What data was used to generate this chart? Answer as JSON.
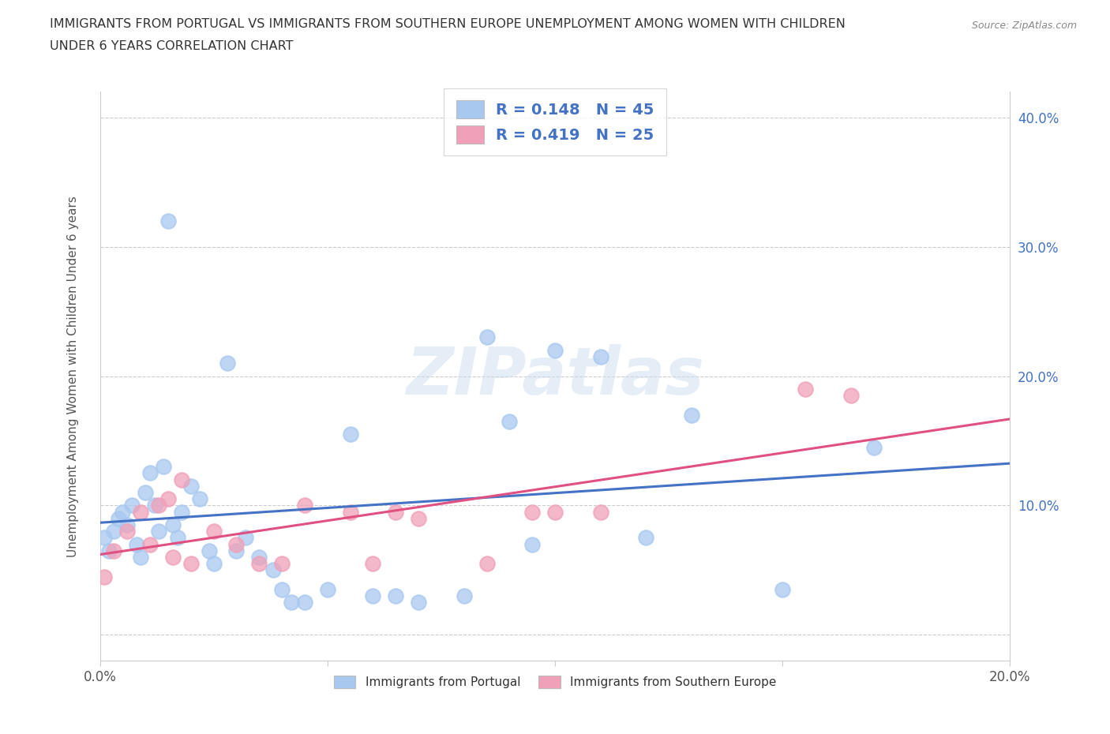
{
  "title_line1": "IMMIGRANTS FROM PORTUGAL VS IMMIGRANTS FROM SOUTHERN EUROPE UNEMPLOYMENT AMONG WOMEN WITH CHILDREN",
  "title_line2": "UNDER 6 YEARS CORRELATION CHART",
  "source": "Source: ZipAtlas.com",
  "ylabel": "Unemployment Among Women with Children Under 6 years",
  "xlim": [
    0.0,
    0.2
  ],
  "ylim": [
    -0.02,
    0.42
  ],
  "xticks": [
    0.0,
    0.05,
    0.1,
    0.15,
    0.2
  ],
  "xtick_labels": [
    "0.0%",
    "",
    "",
    "",
    "20.0%"
  ],
  "yticks": [
    0.0,
    0.1,
    0.2,
    0.3,
    0.4
  ],
  "ytick_labels_right": [
    "",
    "10.0%",
    "20.0%",
    "30.0%",
    "40.0%"
  ],
  "legend_labels": [
    "Immigrants from Portugal",
    "Immigrants from Southern Europe"
  ],
  "R_portugal": 0.148,
  "N_portugal": 45,
  "R_southern": 0.419,
  "N_southern": 25,
  "color_portugal": "#a8c8f0",
  "color_southern": "#f0a0b8",
  "line_color_portugal": "#4472c4",
  "line_color_southern": "#e05080",
  "background_color": "#ffffff",
  "watermark": "ZIPatlas",
  "scatter_portugal_x": [
    0.001,
    0.002,
    0.003,
    0.004,
    0.005,
    0.006,
    0.007,
    0.008,
    0.009,
    0.01,
    0.011,
    0.012,
    0.013,
    0.014,
    0.015,
    0.016,
    0.017,
    0.018,
    0.02,
    0.022,
    0.024,
    0.025,
    0.028,
    0.03,
    0.032,
    0.035,
    0.038,
    0.04,
    0.042,
    0.045,
    0.05,
    0.055,
    0.06,
    0.065,
    0.07,
    0.08,
    0.085,
    0.09,
    0.095,
    0.1,
    0.11,
    0.12,
    0.13,
    0.15,
    0.17
  ],
  "scatter_portugal_y": [
    0.075,
    0.065,
    0.08,
    0.09,
    0.095,
    0.085,
    0.1,
    0.07,
    0.06,
    0.11,
    0.125,
    0.1,
    0.08,
    0.13,
    0.32,
    0.085,
    0.075,
    0.095,
    0.115,
    0.105,
    0.065,
    0.055,
    0.21,
    0.065,
    0.075,
    0.06,
    0.05,
    0.035,
    0.025,
    0.025,
    0.035,
    0.155,
    0.03,
    0.03,
    0.025,
    0.03,
    0.23,
    0.165,
    0.07,
    0.22,
    0.215,
    0.075,
    0.17,
    0.035,
    0.145
  ],
  "scatter_southern_x": [
    0.001,
    0.003,
    0.006,
    0.009,
    0.011,
    0.013,
    0.015,
    0.016,
    0.018,
    0.02,
    0.025,
    0.03,
    0.035,
    0.04,
    0.045,
    0.055,
    0.06,
    0.065,
    0.07,
    0.085,
    0.095,
    0.1,
    0.11,
    0.155,
    0.165
  ],
  "scatter_southern_y": [
    0.045,
    0.065,
    0.08,
    0.095,
    0.07,
    0.1,
    0.105,
    0.06,
    0.12,
    0.055,
    0.08,
    0.07,
    0.055,
    0.055,
    0.1,
    0.095,
    0.055,
    0.095,
    0.09,
    0.055,
    0.095,
    0.095,
    0.095,
    0.19,
    0.185
  ]
}
